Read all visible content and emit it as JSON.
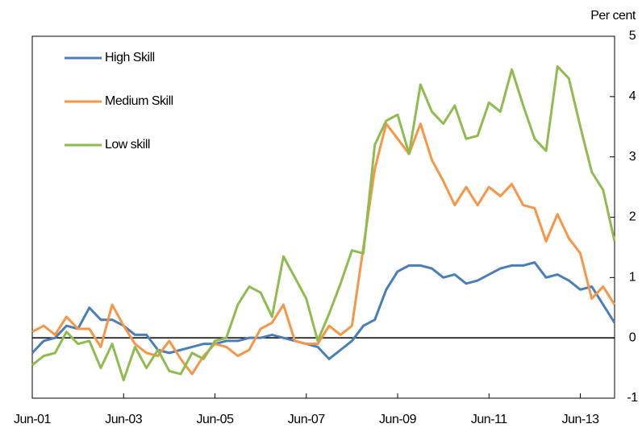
{
  "chart_data": {
    "type": "line",
    "y_axis_label": "Per cent",
    "categories": [
      "Jun-01",
      null,
      null,
      null,
      null,
      null,
      null,
      null,
      "Jun-03",
      null,
      null,
      null,
      null,
      null,
      null,
      null,
      "Jun-05",
      null,
      null,
      null,
      null,
      null,
      null,
      null,
      "Jun-07",
      null,
      null,
      null,
      null,
      null,
      null,
      null,
      "Jun-09",
      null,
      null,
      null,
      null,
      null,
      null,
      null,
      "Jun-11",
      null,
      null,
      null,
      null,
      null,
      null,
      null,
      "Jun-13",
      null,
      null,
      null
    ],
    "series": [
      {
        "name": "High Skill",
        "color": "#4a7ebb",
        "values": [
          -0.25,
          -0.05,
          0,
          0.2,
          0.15,
          0.5,
          0.3,
          0.3,
          0.2,
          0.05,
          0.05,
          -0.2,
          -0.25,
          -0.2,
          -0.15,
          -0.1,
          -0.1,
          -0.05,
          -0.05,
          0,
          0,
          0.05,
          0,
          -0.05,
          -0.1,
          -0.15,
          -0.35,
          -0.2,
          -0.05,
          0.2,
          0.3,
          0.8,
          1.1,
          1.2,
          1.2,
          1.15,
          1.0,
          1.05,
          0.9,
          0.95,
          1.05,
          1.15,
          1.2,
          1.2,
          1.25,
          1.0,
          1.05,
          0.95,
          0.8,
          0.85,
          0.55,
          0.25
        ]
      },
      {
        "name": "Medium Skill",
        "color": "#f79646",
        "values": [
          0.1,
          0.2,
          0.05,
          0.35,
          0.15,
          0.15,
          -0.15,
          0.55,
          0.2,
          -0.1,
          -0.25,
          -0.3,
          -0.05,
          -0.35,
          -0.6,
          -0.3,
          -0.1,
          -0.15,
          -0.3,
          -0.2,
          0.15,
          0.25,
          0.55,
          -0.05,
          -0.1,
          -0.1,
          0.2,
          0.05,
          0.2,
          1.5,
          2.8,
          3.55,
          3.3,
          3.05,
          3.55,
          2.95,
          2.6,
          2.2,
          2.5,
          2.2,
          2.5,
          2.35,
          2.55,
          2.2,
          2.15,
          1.6,
          2.05,
          1.65,
          1.4,
          0.65,
          0.85,
          0.55
        ]
      },
      {
        "name": "Low skill",
        "color": "#8fbc4f",
        "values": [
          -0.45,
          -0.3,
          -0.25,
          0.1,
          -0.1,
          -0.05,
          -0.5,
          -0.1,
          -0.7,
          -0.15,
          -0.5,
          -0.2,
          -0.55,
          -0.6,
          -0.25,
          -0.35,
          -0.05,
          0,
          0.55,
          0.85,
          0.75,
          0.35,
          1.35,
          1.0,
          0.65,
          -0.05,
          0.4,
          0.9,
          1.45,
          1.4,
          3.2,
          3.6,
          3.7,
          3.05,
          4.2,
          3.75,
          3.55,
          3.85,
          3.3,
          3.35,
          3.9,
          3.75,
          4.45,
          3.85,
          3.3,
          3.1,
          4.5,
          4.3,
          3.5,
          2.75,
          2.45,
          1.6
        ]
      }
    ],
    "ylim": [
      -1,
      5
    ],
    "yticks": [
      -1,
      0,
      1,
      2,
      3,
      4,
      5
    ],
    "legend": "top-left"
  }
}
